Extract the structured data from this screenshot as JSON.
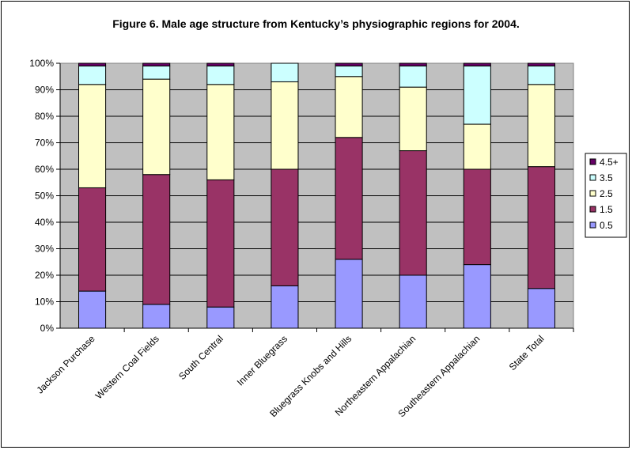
{
  "chart_data": {
    "type": "bar",
    "stacked": true,
    "percent": true,
    "title": "Figure 6.  Male age structure from Kentucky’s physiographic regions for 2004.",
    "xlabel": "",
    "ylabel": "",
    "ylim": [
      0,
      100
    ],
    "yticks": [
      "0%",
      "10%",
      "20%",
      "30%",
      "40%",
      "50%",
      "60%",
      "70%",
      "80%",
      "90%",
      "100%"
    ],
    "grid": true,
    "legend_position": "right",
    "background": "#c0c0c0",
    "categories": [
      "Jackson Purchase",
      "Western Coal Fields",
      "South Central",
      "Inner Bluegrass",
      "Bluegrass Knobs and Hills",
      "Northeastern Appalachian",
      "Southeastern Appalachian",
      "State Total"
    ],
    "series": [
      {
        "name": "0.5",
        "color": "#9999ff",
        "values": [
          14,
          9,
          8,
          16,
          26,
          20,
          24,
          15
        ]
      },
      {
        "name": "1.5",
        "color": "#993366",
        "values": [
          39,
          49,
          48,
          44,
          46,
          47,
          36,
          46
        ]
      },
      {
        "name": "2.5",
        "color": "#ffffcc",
        "values": [
          39,
          36,
          36,
          33,
          23,
          24,
          17,
          31
        ]
      },
      {
        "name": "3.5",
        "color": "#ccffff",
        "values": [
          7,
          5,
          7,
          7,
          4,
          8,
          22,
          7
        ]
      },
      {
        "name": "4.5+",
        "color": "#660066",
        "values": [
          1,
          1,
          1,
          0,
          1,
          1,
          1,
          1
        ]
      }
    ]
  }
}
